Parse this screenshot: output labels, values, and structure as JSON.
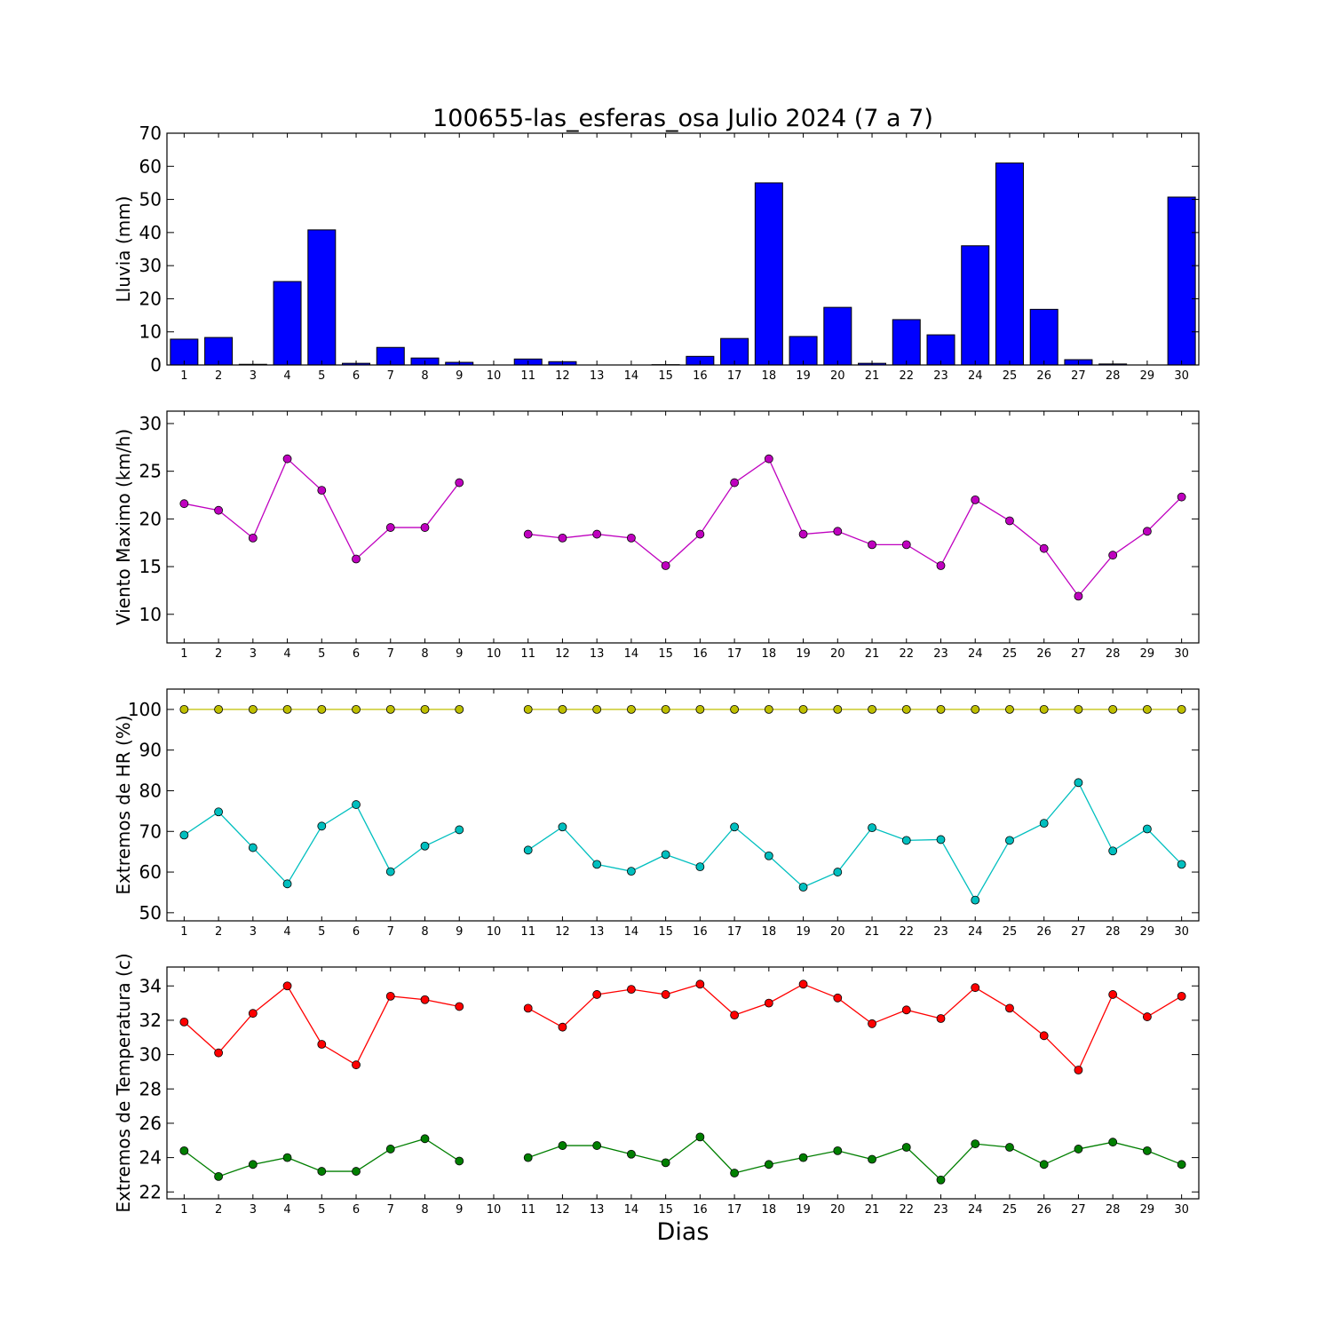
{
  "title": "100655-las_esferas_osa Julio 2024  (7 a 7)",
  "xlabel": "Dias",
  "chart_data": [
    {
      "type": "bar",
      "ylabel": "Lluvia (mm)",
      "ylim": [
        0,
        70
      ],
      "yticks": [
        0,
        10,
        20,
        30,
        40,
        50,
        60,
        70
      ],
      "categories": [
        "1",
        "2",
        "3",
        "4",
        "5",
        "6",
        "7",
        "8",
        "9",
        "10",
        "11",
        "12",
        "13",
        "14",
        "15",
        "16",
        "17",
        "18",
        "19",
        "20",
        "21",
        "22",
        "23",
        "24",
        "25",
        "26",
        "27",
        "28",
        "29",
        "30"
      ],
      "series": [
        {
          "color": "#0000ff",
          "values": [
            7.8,
            8.3,
            0.2,
            25.2,
            40.8,
            0.5,
            5.3,
            2.1,
            0.8,
            0.0,
            1.8,
            1.0,
            0.0,
            0.0,
            0.1,
            2.6,
            8.0,
            55.0,
            8.6,
            17.4,
            0.5,
            13.7,
            9.1,
            36.0,
            61.0,
            16.8,
            1.6,
            0.3,
            0.0,
            50.7
          ]
        }
      ]
    },
    {
      "type": "line",
      "ylabel": "Viento Maximo (km/h)",
      "ylim": [
        7,
        31.3
      ],
      "yticks": [
        10,
        15,
        20,
        25,
        30
      ],
      "categories": [
        "1",
        "2",
        "3",
        "4",
        "5",
        "6",
        "7",
        "8",
        "9",
        "10",
        "11",
        "12",
        "13",
        "14",
        "15",
        "16",
        "17",
        "18",
        "19",
        "20",
        "21",
        "22",
        "23",
        "24",
        "25",
        "26",
        "27",
        "28",
        "29",
        "30"
      ],
      "series": [
        {
          "color": "#bf00bf",
          "values": [
            21.6,
            20.9,
            18.0,
            26.3,
            23.0,
            15.8,
            19.1,
            19.1,
            23.8,
            null,
            18.4,
            18.0,
            18.4,
            18.0,
            15.1,
            18.4,
            23.8,
            26.3,
            18.4,
            18.7,
            17.3,
            17.3,
            15.1,
            22.0,
            19.8,
            16.9,
            11.9,
            16.2,
            18.7,
            22.3
          ]
        }
      ]
    },
    {
      "type": "line",
      "ylabel": "Extremos de HR (%)",
      "ylim": [
        48,
        105
      ],
      "yticks": [
        50,
        60,
        70,
        80,
        90,
        100
      ],
      "categories": [
        "1",
        "2",
        "3",
        "4",
        "5",
        "6",
        "7",
        "8",
        "9",
        "10",
        "11",
        "12",
        "13",
        "14",
        "15",
        "16",
        "17",
        "18",
        "19",
        "20",
        "21",
        "22",
        "23",
        "24",
        "25",
        "26",
        "27",
        "28",
        "29",
        "30"
      ],
      "series": [
        {
          "color": "#bfbf00",
          "values": [
            100,
            100,
            100,
            100,
            100,
            100,
            100,
            100,
            100,
            null,
            100,
            100,
            100,
            100,
            100,
            100,
            100,
            100,
            100,
            100,
            100,
            100,
            100,
            100,
            100,
            100,
            100,
            100,
            100,
            100
          ]
        },
        {
          "color": "#00bfbf",
          "values": [
            69.1,
            74.8,
            66.0,
            57.1,
            71.3,
            76.6,
            60.1,
            66.4,
            70.4,
            null,
            65.4,
            71.1,
            61.9,
            60.2,
            64.3,
            61.3,
            71.1,
            64.0,
            56.3,
            60.0,
            70.9,
            67.8,
            68.0,
            53.1,
            67.8,
            72.0,
            82.0,
            65.2,
            70.6,
            61.9
          ]
        }
      ]
    },
    {
      "type": "line",
      "ylabel": "Extremos de Temperatura (c)",
      "ylim": [
        21.6,
        35.1
      ],
      "yticks": [
        22,
        24,
        26,
        28,
        30,
        32,
        34
      ],
      "categories": [
        "1",
        "2",
        "3",
        "4",
        "5",
        "6",
        "7",
        "8",
        "9",
        "10",
        "11",
        "12",
        "13",
        "14",
        "15",
        "16",
        "17",
        "18",
        "19",
        "20",
        "21",
        "22",
        "23",
        "24",
        "25",
        "26",
        "27",
        "28",
        "29",
        "30"
      ],
      "series": [
        {
          "color": "#ff0000",
          "values": [
            31.9,
            30.1,
            32.4,
            34.0,
            30.6,
            29.4,
            33.4,
            33.2,
            32.8,
            null,
            32.7,
            31.6,
            33.5,
            33.8,
            33.5,
            34.1,
            32.3,
            33.0,
            34.1,
            33.3,
            31.8,
            32.6,
            32.1,
            33.9,
            32.7,
            31.1,
            29.1,
            33.5,
            32.2,
            33.4
          ]
        },
        {
          "color": "#007f00",
          "values": [
            24.4,
            22.9,
            23.6,
            24.0,
            23.2,
            23.2,
            24.5,
            25.1,
            23.8,
            null,
            24.0,
            24.7,
            24.7,
            24.2,
            23.7,
            25.2,
            23.1,
            23.6,
            24.0,
            24.4,
            23.9,
            24.6,
            22.7,
            24.8,
            24.6,
            23.6,
            24.5,
            24.9,
            24.4,
            23.6
          ]
        }
      ]
    }
  ]
}
